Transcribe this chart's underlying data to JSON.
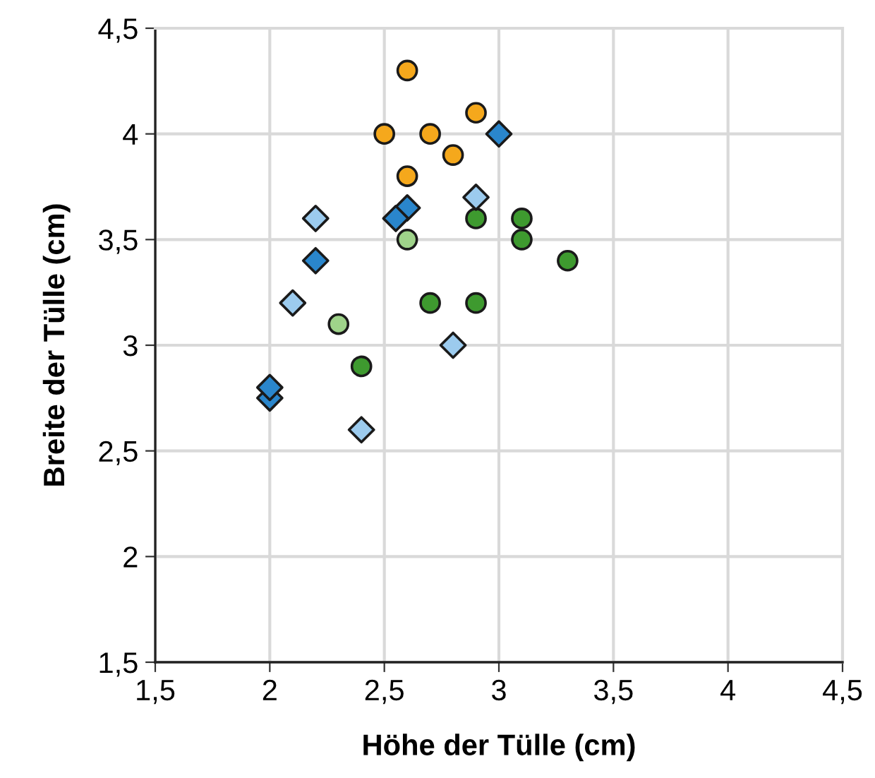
{
  "chart_data": {
    "type": "scatter",
    "xlabel": "Höhe der Tülle (cm)",
    "ylabel": "Breite der Tülle (cm)",
    "xlim": [
      1.5,
      4.5
    ],
    "ylim": [
      1.5,
      4.5
    ],
    "xticks": [
      {
        "value": 1.5,
        "label": "1,5"
      },
      2,
      {
        "value": 2.5,
        "label": "2,5"
      },
      3,
      {
        "value": 3.5,
        "label": "3,5"
      },
      4,
      {
        "value": 4.5,
        "label": "4,5"
      }
    ],
    "yticks": [
      {
        "value": 1.5,
        "label": "1,5"
      },
      2,
      {
        "value": 2.5,
        "label": "2,5"
      },
      3,
      {
        "value": 3.5,
        "label": "3,5"
      },
      4,
      {
        "value": 4.5,
        "label": "4,5"
      }
    ],
    "grid": true,
    "series": [
      {
        "color": "#f5a81c",
        "marker": "circle",
        "x": [
          2.6,
          2.5,
          2.7,
          2.9,
          2.8,
          2.6
        ],
        "values": [
          4.3,
          4.0,
          4.0,
          4.1,
          3.9,
          3.8
        ]
      },
      {
        "color": "#3e9a2f",
        "marker": "circle",
        "x": [
          2.4,
          2.7,
          2.9,
          2.9,
          3.1,
          3.1,
          3.3
        ],
        "values": [
          2.9,
          3.2,
          3.2,
          3.6,
          3.6,
          3.5,
          3.4
        ]
      },
      {
        "color": "#9fd38a",
        "marker": "circle",
        "x": [
          2.6,
          2.3
        ],
        "values": [
          3.5,
          3.1
        ]
      },
      {
        "color": "#2a86cc",
        "marker": "diamond",
        "x": [
          3.0,
          2.6,
          2.55,
          2.2,
          2.0,
          2.0
        ],
        "values": [
          4.0,
          3.65,
          3.6,
          3.4,
          2.75,
          2.8
        ]
      },
      {
        "color": "#9ccbee",
        "marker": "diamond",
        "x": [
          2.2,
          2.1,
          2.9,
          2.8,
          2.4
        ],
        "values": [
          3.6,
          3.2,
          3.7,
          3.0,
          2.6
        ]
      }
    ]
  }
}
